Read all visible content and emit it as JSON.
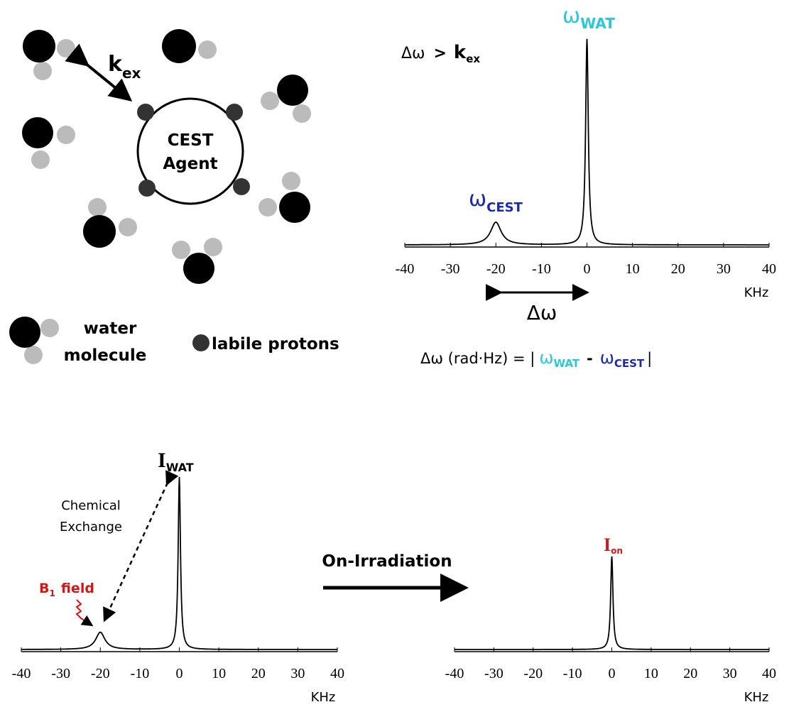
{
  "molecule_diagram": {
    "agent_label": [
      "CEST",
      "Agent"
    ],
    "exchange_label": {
      "main": "k",
      "sub": "ex"
    },
    "legend": {
      "water": [
        "water",
        "molecule"
      ],
      "labile": "labile protons"
    }
  },
  "top_spectrum": {
    "condition": {
      "lhs": "Δω",
      "op": ">",
      "main": "k",
      "sub": "ex"
    },
    "water_label": {
      "main": "ω",
      "sub": "WAT"
    },
    "cest_label": {
      "main": "ω",
      "sub": "CEST"
    },
    "shift_label": "Δω",
    "formula": {
      "lhs": "Δω (rad·Hz) = |",
      "minus": "-",
      "end": "|"
    },
    "xlim": [
      -40,
      40
    ],
    "xticks": [
      -40,
      -30,
      -20,
      -10,
      0,
      10,
      20,
      30,
      40
    ],
    "xlabel": "KHz",
    "peaks": [
      {
        "x": 0,
        "height": 100,
        "width": 0.35
      },
      {
        "x": -20,
        "height": 11,
        "width": 1.4
      }
    ]
  },
  "bottom_left_spectrum": {
    "water_label": {
      "main": "I",
      "sub": "WAT"
    },
    "exchange_label": [
      "Chemical",
      "Exchange"
    ],
    "b1_label": {
      "main": "B",
      "sub": "1",
      "rest": "field"
    },
    "xlim": [
      -40,
      40
    ],
    "xticks": [
      -40,
      -30,
      -20,
      -10,
      0,
      10,
      20,
      30,
      40
    ],
    "xlabel": "KHz",
    "peaks": [
      {
        "x": 0,
        "height": 100,
        "width": 0.35
      },
      {
        "x": -20,
        "height": 10,
        "width": 1.4
      }
    ]
  },
  "arrow_label": "On-Irradiation",
  "bottom_right_spectrum": {
    "on_label": {
      "main": "I",
      "sub": "on"
    },
    "xlim": [
      -40,
      40
    ],
    "xticks": [
      -40,
      -30,
      -20,
      -10,
      0,
      10,
      20,
      30,
      40
    ],
    "xlabel": "KHz",
    "peaks": [
      {
        "x": 0,
        "height": 54,
        "width": 0.35
      }
    ]
  }
}
